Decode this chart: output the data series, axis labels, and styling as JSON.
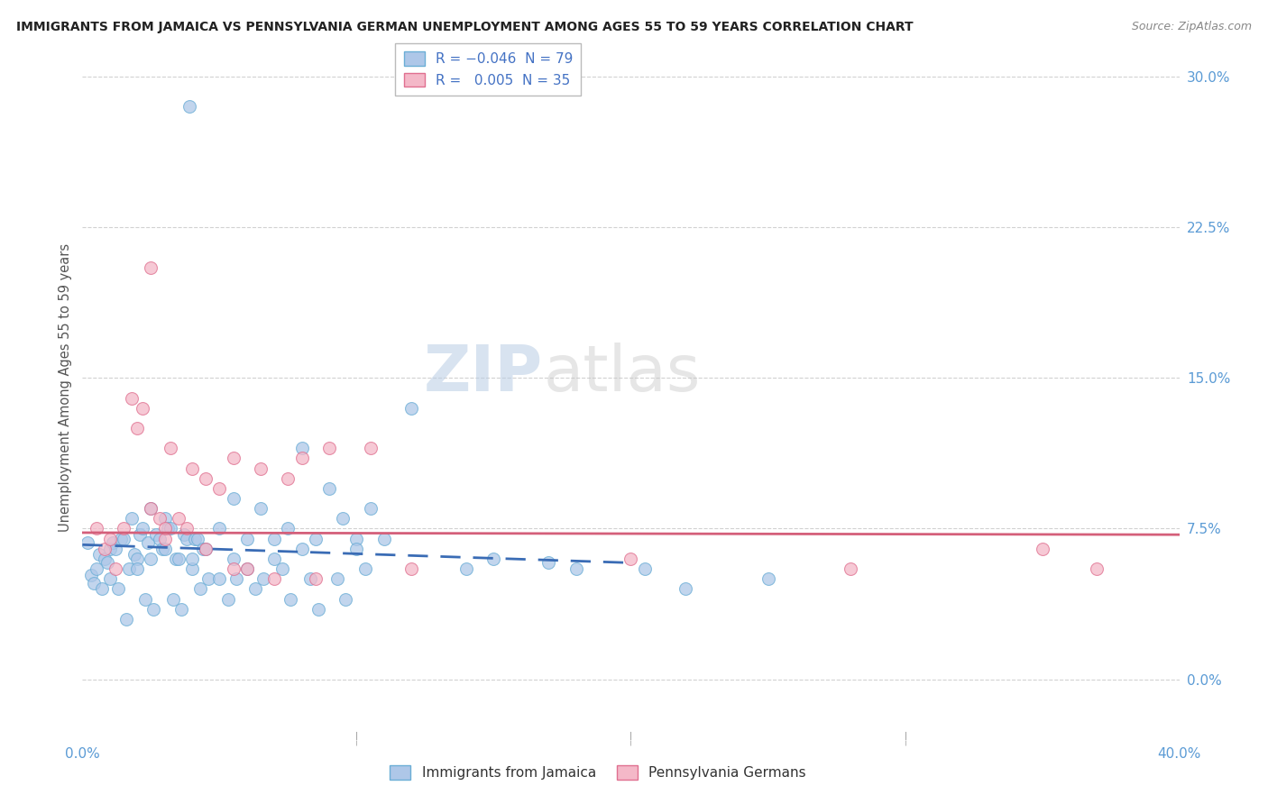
{
  "title": "IMMIGRANTS FROM JAMAICA VS PENNSYLVANIA GERMAN UNEMPLOYMENT AMONG AGES 55 TO 59 YEARS CORRELATION CHART",
  "source": "Source: ZipAtlas.com",
  "ylabel": "Unemployment Among Ages 55 to 59 years",
  "ytick_vals": [
    0.0,
    7.5,
    15.0,
    22.5,
    30.0
  ],
  "xlim": [
    0.0,
    40.0
  ],
  "ylim": [
    -3.0,
    32.0
  ],
  "watermark_zip": "ZIP",
  "watermark_atlas": "atlas",
  "jamaica_scatter": [
    [
      0.2,
      6.8
    ],
    [
      0.3,
      5.2
    ],
    [
      0.4,
      4.8
    ],
    [
      0.5,
      5.5
    ],
    [
      0.6,
      6.2
    ],
    [
      0.7,
      4.5
    ],
    [
      0.8,
      6.0
    ],
    [
      0.9,
      5.8
    ],
    [
      1.0,
      5.0
    ],
    [
      1.0,
      6.5
    ],
    [
      1.1,
      6.8
    ],
    [
      1.2,
      6.5
    ],
    [
      1.3,
      4.5
    ],
    [
      1.4,
      7.0
    ],
    [
      1.5,
      7.0
    ],
    [
      1.6,
      3.0
    ],
    [
      1.7,
      5.5
    ],
    [
      1.8,
      8.0
    ],
    [
      1.9,
      6.2
    ],
    [
      2.0,
      6.0
    ],
    [
      2.0,
      5.5
    ],
    [
      2.1,
      7.2
    ],
    [
      2.2,
      7.5
    ],
    [
      2.3,
      4.0
    ],
    [
      2.4,
      6.8
    ],
    [
      2.5,
      6.0
    ],
    [
      2.5,
      8.5
    ],
    [
      2.6,
      3.5
    ],
    [
      2.7,
      7.2
    ],
    [
      2.8,
      7.0
    ],
    [
      2.9,
      6.5
    ],
    [
      3.0,
      6.5
    ],
    [
      3.0,
      8.0
    ],
    [
      3.1,
      7.5
    ],
    [
      3.2,
      7.5
    ],
    [
      3.3,
      4.0
    ],
    [
      3.4,
      6.0
    ],
    [
      3.5,
      6.0
    ],
    [
      3.6,
      3.5
    ],
    [
      3.7,
      7.2
    ],
    [
      3.8,
      7.0
    ],
    [
      3.9,
      28.5
    ],
    [
      4.0,
      5.5
    ],
    [
      4.0,
      6.0
    ],
    [
      4.1,
      7.0
    ],
    [
      4.2,
      7.0
    ],
    [
      4.3,
      4.5
    ],
    [
      4.4,
      6.5
    ],
    [
      4.5,
      6.5
    ],
    [
      4.6,
      5.0
    ],
    [
      5.0,
      7.5
    ],
    [
      5.0,
      5.0
    ],
    [
      5.3,
      4.0
    ],
    [
      5.5,
      6.0
    ],
    [
      5.5,
      9.0
    ],
    [
      5.6,
      5.0
    ],
    [
      6.0,
      7.0
    ],
    [
      6.0,
      5.5
    ],
    [
      6.3,
      4.5
    ],
    [
      6.5,
      8.5
    ],
    [
      6.6,
      5.0
    ],
    [
      7.0,
      7.0
    ],
    [
      7.0,
      6.0
    ],
    [
      7.3,
      5.5
    ],
    [
      7.5,
      7.5
    ],
    [
      7.6,
      4.0
    ],
    [
      8.0,
      6.5
    ],
    [
      8.0,
      11.5
    ],
    [
      8.3,
      5.0
    ],
    [
      8.5,
      7.0
    ],
    [
      8.6,
      3.5
    ],
    [
      9.0,
      9.5
    ],
    [
      9.3,
      5.0
    ],
    [
      9.5,
      8.0
    ],
    [
      9.6,
      4.0
    ],
    [
      10.0,
      7.0
    ],
    [
      10.0,
      6.5
    ],
    [
      10.3,
      5.5
    ],
    [
      10.5,
      8.5
    ],
    [
      11.0,
      7.0
    ],
    [
      12.0,
      13.5
    ],
    [
      14.0,
      5.5
    ],
    [
      15.0,
      6.0
    ],
    [
      17.0,
      5.8
    ],
    [
      18.0,
      5.5
    ],
    [
      20.5,
      5.5
    ],
    [
      22.0,
      4.5
    ],
    [
      25.0,
      5.0
    ]
  ],
  "pa_german_scatter": [
    [
      0.5,
      7.5
    ],
    [
      0.8,
      6.5
    ],
    [
      1.0,
      7.0
    ],
    [
      1.2,
      5.5
    ],
    [
      1.5,
      7.5
    ],
    [
      1.8,
      14.0
    ],
    [
      2.0,
      12.5
    ],
    [
      2.2,
      13.5
    ],
    [
      2.5,
      8.5
    ],
    [
      2.8,
      8.0
    ],
    [
      3.0,
      7.0
    ],
    [
      3.0,
      7.5
    ],
    [
      3.2,
      11.5
    ],
    [
      3.5,
      8.0
    ],
    [
      3.8,
      7.5
    ],
    [
      4.0,
      10.5
    ],
    [
      4.5,
      10.0
    ],
    [
      5.0,
      9.5
    ],
    [
      5.5,
      11.0
    ],
    [
      6.5,
      10.5
    ],
    [
      7.5,
      10.0
    ],
    [
      8.0,
      11.0
    ],
    [
      9.0,
      11.5
    ],
    [
      10.5,
      11.5
    ],
    [
      2.5,
      20.5
    ],
    [
      4.5,
      6.5
    ],
    [
      5.5,
      5.5
    ],
    [
      6.0,
      5.5
    ],
    [
      7.0,
      5.0
    ],
    [
      8.5,
      5.0
    ],
    [
      12.0,
      5.5
    ],
    [
      20.0,
      6.0
    ],
    [
      28.0,
      5.5
    ],
    [
      35.0,
      6.5
    ],
    [
      37.0,
      5.5
    ]
  ],
  "jamaica_scatter_facecolor": "#aec7e8",
  "jamaica_scatter_edgecolor": "#6baed6",
  "pa_german_scatter_facecolor": "#f4b8c8",
  "pa_german_scatter_edgecolor": "#e07090",
  "trend_jamaica_color": "#3a6cb5",
  "trend_pa_german_color": "#d45f7a",
  "grid_color": "#cccccc",
  "background_color": "#ffffff",
  "title_color": "#222222",
  "axis_label_color": "#555555",
  "tick_color": "#5b9bd5",
  "source_color": "#888888",
  "legend_label_color": "#4472c4",
  "watermark_color": "#d0dff0",
  "watermark_atlas_color": "#c8c8c8"
}
